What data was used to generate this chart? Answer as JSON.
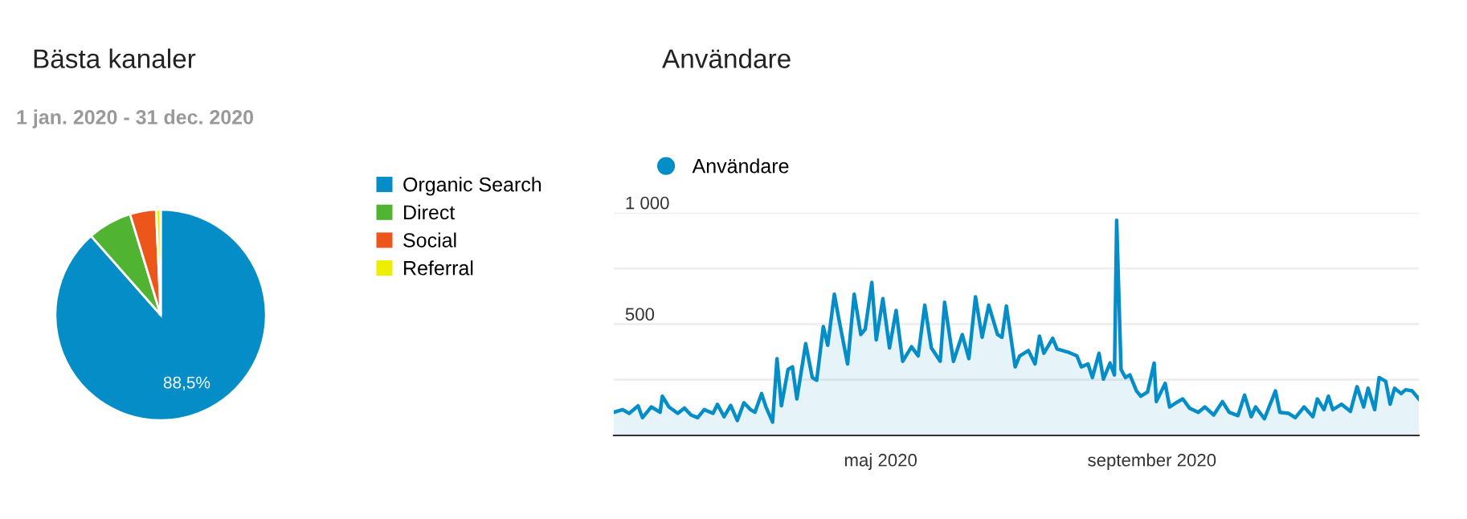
{
  "chart_data": [
    {
      "type": "pie",
      "title": "Bästa kanaler",
      "subtitle": "1 jan. 2020 - 31 dec. 2020",
      "categories": [
        "Organic Search",
        "Direct",
        "Social",
        "Referral"
      ],
      "values": [
        88.5,
        6.8,
        4.0,
        0.7
      ],
      "colors": [
        "#058dc7",
        "#50b432",
        "#ed561b",
        "#edef00"
      ],
      "value_labels": [
        "88,5%",
        null,
        null,
        null
      ],
      "legend": "right"
    },
    {
      "type": "area",
      "title": "Användare",
      "x": [
        "2020-01-01",
        "2020-01-05",
        "2020-01-08",
        "2020-01-12",
        "2020-01-14",
        "2020-01-18",
        "2020-01-22",
        "2020-01-23",
        "2020-01-26",
        "2020-01-30",
        "2020-02-02",
        "2020-02-05",
        "2020-02-08",
        "2020-02-11",
        "2020-02-15",
        "2020-02-17",
        "2020-02-20",
        "2020-02-23",
        "2020-02-26",
        "2020-02-29",
        "2020-03-03",
        "2020-03-05",
        "2020-03-08",
        "2020-03-10",
        "2020-03-13",
        "2020-03-15",
        "2020-03-17",
        "2020-03-20",
        "2020-03-22",
        "2020-03-24",
        "2020-03-28",
        "2020-03-31",
        "2020-04-02",
        "2020-04-05",
        "2020-04-07",
        "2020-04-10",
        "2020-04-12",
        "2020-04-16",
        "2020-04-19",
        "2020-04-22",
        "2020-04-24",
        "2020-04-27",
        "2020-04-29",
        "2020-05-02",
        "2020-05-05",
        "2020-05-08",
        "2020-05-11",
        "2020-05-15",
        "2020-05-18",
        "2020-05-21",
        "2020-05-24",
        "2020-05-28",
        "2020-05-30",
        "2020-06-03",
        "2020-06-07",
        "2020-06-10",
        "2020-06-13",
        "2020-06-16",
        "2020-06-19",
        "2020-06-23",
        "2020-06-25",
        "2020-06-27",
        "2020-07-01",
        "2020-07-03",
        "2020-07-07",
        "2020-07-10",
        "2020-07-12",
        "2020-07-14",
        "2020-07-18",
        "2020-07-20",
        "2020-07-25",
        "2020-07-29",
        "2020-07-31",
        "2020-08-03",
        "2020-08-05",
        "2020-08-08",
        "2020-08-10",
        "2020-08-13",
        "2020-08-15",
        "2020-08-16",
        "2020-08-18",
        "2020-08-20",
        "2020-08-22",
        "2020-08-25",
        "2020-08-27",
        "2020-08-30",
        "2020-09-02",
        "2020-09-03",
        "2020-09-07",
        "2020-09-09",
        "2020-09-12",
        "2020-09-15",
        "2020-09-18",
        "2020-09-22",
        "2020-09-25",
        "2020-09-29",
        "2020-10-03",
        "2020-10-06",
        "2020-10-10",
        "2020-10-13",
        "2020-10-16",
        "2020-10-18",
        "2020-10-22",
        "2020-10-27",
        "2020-10-29",
        "2020-11-02",
        "2020-11-05",
        "2020-11-09",
        "2020-11-13",
        "2020-11-15",
        "2020-11-18",
        "2020-11-20",
        "2020-11-22",
        "2020-11-26",
        "2020-11-30",
        "2020-12-03",
        "2020-12-06",
        "2020-12-08",
        "2020-12-11",
        "2020-12-13",
        "2020-12-16",
        "2020-12-18",
        "2020-12-20",
        "2020-12-23",
        "2020-12-25",
        "2020-12-28",
        "2020-12-31"
      ],
      "series": [
        {
          "name": "Användare",
          "color": "#058dc7",
          "values": [
            104,
            116,
            99,
            133,
            80,
            128,
            104,
            176,
            128,
            99,
            123,
            92,
            80,
            116,
            99,
            140,
            84,
            135,
            67,
            147,
            116,
            104,
            188,
            128,
            60,
            345,
            133,
            296,
            308,
            164,
            412,
            260,
            248,
            489,
            405,
            634,
            525,
            321,
            634,
            453,
            477,
            687,
            429,
            614,
            393,
            561,
            333,
            398,
            357,
            585,
            393,
            333,
            598,
            333,
            453,
            345,
            622,
            441,
            585,
            453,
            441,
            581,
            308,
            357,
            381,
            321,
            446,
            369,
            436,
            388,
            374,
            357,
            308,
            321,
            260,
            369,
            253,
            325,
            272,
            966,
            296,
            260,
            272,
            200,
            176,
            195,
            325,
            152,
            234,
            128,
            147,
            164,
            123,
            104,
            128,
            92,
            152,
            104,
            89,
            181,
            84,
            128,
            75,
            200,
            104,
            99,
            80,
            128,
            84,
            164,
            116,
            176,
            116,
            140,
            108,
            219,
            128,
            212,
            116,
            260,
            243,
            140,
            212,
            188,
            205,
            200,
            164
          ]
        }
      ],
      "xlim": [
        "2020-01-01",
        "2020-12-31"
      ],
      "xticks": [
        {
          "value": "2020-05-01",
          "label": "maj 2020"
        },
        {
          "value": "2020-09-01",
          "label": "september 2020"
        }
      ],
      "ylim": [
        0,
        1000
      ],
      "yticks": [
        {
          "value": 0,
          "label": null
        },
        {
          "value": 250,
          "label": null
        },
        {
          "value": 500,
          "label": "500"
        },
        {
          "value": 750,
          "label": null
        },
        {
          "value": 1000,
          "label": "1 000"
        }
      ],
      "grid": "y",
      "legend": "top left"
    }
  ]
}
